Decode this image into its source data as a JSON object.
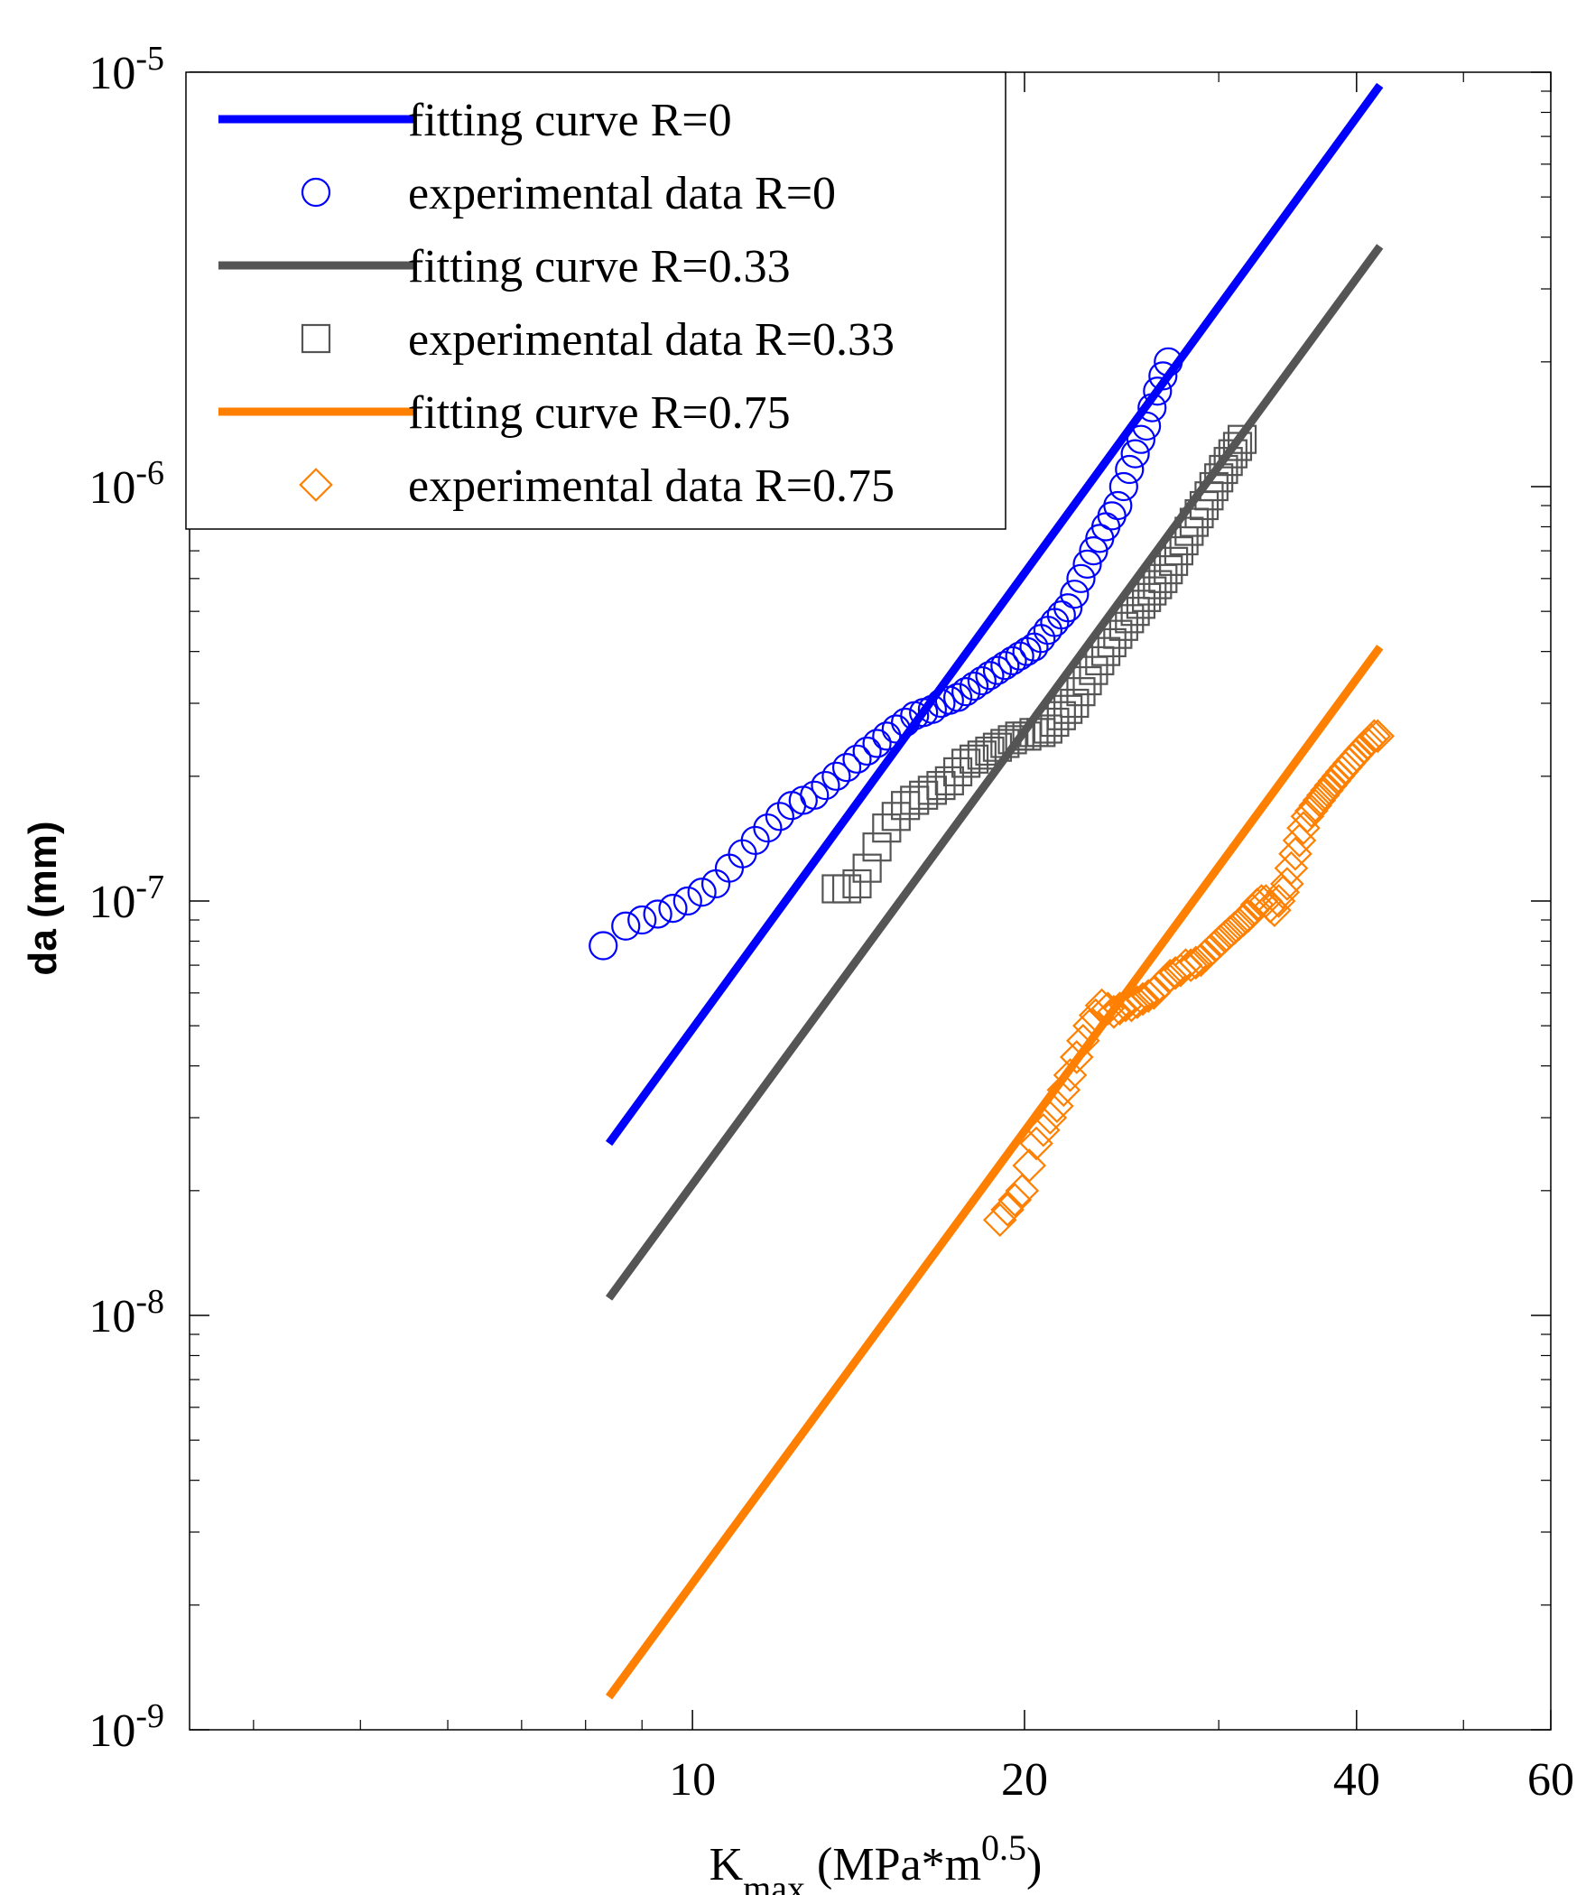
{
  "chart_data": {
    "type": "scatter",
    "xlabel": {
      "main": "K",
      "sub": "max",
      "rest": " (MPa*m",
      "sup": "0.5",
      "end": ")"
    },
    "ylabel": "da (mm)",
    "xscale": "log",
    "yscale": "log",
    "xlim": [
      3.5,
      60
    ],
    "ylim": [
      1e-09,
      1e-05
    ],
    "xticks": [
      10,
      20,
      40,
      60
    ],
    "yticks": [
      {
        "base": "10",
        "exp": "-9",
        "value": 1e-09
      },
      {
        "base": "10",
        "exp": "-8",
        "value": 1e-08
      },
      {
        "base": "10",
        "exp": "-7",
        "value": 1e-07
      },
      {
        "base": "10",
        "exp": "-6",
        "value": 1e-06
      },
      {
        "base": "10",
        "exp": "-5",
        "value": 1e-05
      }
    ],
    "legend_position": "top-left",
    "colors": {
      "r0": "#0000ff",
      "r033": "#555555",
      "r075": "#ff7f00"
    },
    "series": [
      {
        "name": "fitting curve R=0",
        "kind": "line",
        "color": "#0000ff",
        "x": [
          8.4,
          42
        ],
        "y": [
          2.6e-08,
          9.3e-06
        ]
      },
      {
        "name": "experimental data R=0",
        "kind": "marker",
        "marker": "circle",
        "color": "#0000ff",
        "x": [
          8.3,
          8.7,
          9.0,
          9.3,
          9.6,
          9.9,
          10.2,
          10.5,
          10.8,
          11.1,
          11.4,
          11.7,
          12.0,
          12.3,
          12.6,
          12.9,
          13.2,
          13.5,
          13.8,
          14.1,
          14.4,
          14.7,
          15.0,
          15.3,
          15.6,
          15.9,
          16.2,
          16.5,
          16.8,
          17.1,
          17.4,
          17.7,
          18.0,
          18.3,
          18.6,
          18.9,
          19.2,
          19.5,
          19.8,
          20.1,
          20.4,
          20.7,
          21.0,
          21.3,
          21.6,
          21.9,
          22.2,
          22.5,
          22.8,
          23.1,
          23.4,
          23.7,
          24.0,
          24.3,
          24.6,
          24.9,
          25.2,
          25.5,
          25.8,
          26.1,
          26.4,
          26.7,
          27.0
        ],
        "y": [
          7.8e-08,
          8.7e-08,
          9e-08,
          9.3e-08,
          9.6e-08,
          1e-07,
          1.05e-07,
          1.1e-07,
          1.2e-07,
          1.3e-07,
          1.4e-07,
          1.5e-07,
          1.6e-07,
          1.7e-07,
          1.75e-07,
          1.8e-07,
          1.9e-07,
          2e-07,
          2.1e-07,
          2.2e-07,
          2.3e-07,
          2.4e-07,
          2.5e-07,
          2.6e-07,
          2.7e-07,
          2.8e-07,
          2.85e-07,
          2.9e-07,
          3e-07,
          3.05e-07,
          3.1e-07,
          3.2e-07,
          3.3e-07,
          3.4e-07,
          3.5e-07,
          3.6e-07,
          3.7e-07,
          3.8e-07,
          3.9e-07,
          4e-07,
          4.1e-07,
          4.3e-07,
          4.5e-07,
          4.7e-07,
          4.9e-07,
          5.1e-07,
          5.5e-07,
          6e-07,
          6.5e-07,
          7e-07,
          7.5e-07,
          8e-07,
          8.5e-07,
          9e-07,
          1e-06,
          1.1e-06,
          1.2e-06,
          1.3e-06,
          1.4e-06,
          1.55e-06,
          1.7e-06,
          1.85e-06,
          2e-06
        ]
      },
      {
        "name": "fitting curve R=0.33",
        "kind": "line",
        "color": "#555555",
        "x": [
          8.4,
          42
        ],
        "y": [
          1.1e-08,
          3.8e-06
        ]
      },
      {
        "name": "experimental data R=0.33",
        "kind": "marker",
        "marker": "square",
        "color": "#555555",
        "x": [
          13.5,
          13.8,
          14.1,
          14.4,
          14.7,
          15.0,
          15.3,
          15.6,
          15.9,
          16.2,
          16.5,
          16.8,
          17.1,
          17.4,
          17.7,
          18.0,
          18.3,
          18.6,
          18.9,
          19.2,
          19.5,
          19.8,
          20.1,
          20.4,
          20.7,
          21.0,
          21.3,
          21.6,
          21.9,
          22.2,
          22.5,
          22.8,
          23.1,
          23.4,
          23.7,
          24.0,
          24.3,
          24.6,
          24.9,
          25.2,
          25.5,
          25.8,
          26.1,
          26.4,
          26.7,
          27.0,
          27.3,
          27.6,
          27.9,
          28.2,
          28.5,
          28.8,
          29.1,
          29.4,
          29.7,
          30.0,
          30.3,
          30.6,
          30.9,
          31.2,
          31.5
        ],
        "y": [
          1.07e-07,
          1.07e-07,
          1.1e-07,
          1.2e-07,
          1.35e-07,
          1.5e-07,
          1.6e-07,
          1.7e-07,
          1.75e-07,
          1.8e-07,
          1.85e-07,
          1.9e-07,
          1.95e-07,
          2.05e-07,
          2.15e-07,
          2.2e-07,
          2.25e-07,
          2.3e-07,
          2.35e-07,
          2.4e-07,
          2.45e-07,
          2.5e-07,
          2.5e-07,
          2.55e-07,
          2.55e-07,
          2.6e-07,
          2.7e-07,
          2.8e-07,
          2.9e-07,
          3e-07,
          3.2e-07,
          3.4e-07,
          3.6e-07,
          3.8e-07,
          4e-07,
          4.2e-07,
          4.4e-07,
          4.6e-07,
          4.8e-07,
          5e-07,
          5.2e-07,
          5.4e-07,
          5.6e-07,
          5.8e-07,
          6e-07,
          6.3e-07,
          6.6e-07,
          7e-07,
          7.4e-07,
          7.8e-07,
          8.2e-07,
          8.6e-07,
          9e-07,
          9.5e-07,
          1e-06,
          1.05e-06,
          1.1e-06,
          1.15e-06,
          1.2e-06,
          1.25e-06,
          1.3e-06
        ]
      },
      {
        "name": "fitting curve R=0.75",
        "kind": "line",
        "color": "#ff7f00",
        "x": [
          8.4,
          42
        ],
        "y": [
          1.2e-09,
          4.1e-07
        ]
      },
      {
        "name": "experimental data R=0.75",
        "kind": "marker",
        "marker": "diamond",
        "color": "#ff7f00",
        "x": [
          19.0,
          19.3,
          19.6,
          19.9,
          20.2,
          20.5,
          20.8,
          21.1,
          21.4,
          21.7,
          22.0,
          22.3,
          22.6,
          22.9,
          23.2,
          23.5,
          23.8,
          24.1,
          24.4,
          24.7,
          25.0,
          25.3,
          25.6,
          25.9,
          26.2,
          26.5,
          26.8,
          27.1,
          27.4,
          27.7,
          28.0,
          28.3,
          28.6,
          28.9,
          29.2,
          29.5,
          29.8,
          30.1,
          30.4,
          30.7,
          31.0,
          31.3,
          31.6,
          31.9,
          32.2,
          32.5,
          32.8,
          33.1,
          33.4,
          33.7,
          34.0,
          34.3,
          34.6,
          34.9,
          35.2,
          35.5,
          35.8,
          36.1,
          36.4,
          36.7,
          37.0,
          37.3,
          37.6,
          37.9,
          38.2,
          38.5,
          38.8,
          39.1,
          39.4,
          39.7,
          40.0,
          40.3,
          40.6,
          40.9,
          41.2,
          41.5,
          41.8
        ],
        "y": [
          1.7e-08,
          1.8e-08,
          1.9e-08,
          2e-08,
          2.3e-08,
          2.6e-08,
          2.8e-08,
          3e-08,
          3.2e-08,
          3.5e-08,
          3.8e-08,
          4.2e-08,
          4.6e-08,
          5e-08,
          5.3e-08,
          5.6e-08,
          5.5e-08,
          5.4e-08,
          5.5e-08,
          5.6e-08,
          5.6e-08,
          5.7e-08,
          5.8e-08,
          5.9e-08,
          6e-08,
          6.2e-08,
          6.4e-08,
          6.6e-08,
          6.7e-08,
          6.8e-08,
          7e-08,
          7e-08,
          7.1e-08,
          7.2e-08,
          7.4e-08,
          7.6e-08,
          7.8e-08,
          8e-08,
          8.2e-08,
          8.4e-08,
          8.6e-08,
          8.8e-08,
          9e-08,
          9.2e-08,
          9.5e-08,
          9.8e-08,
          1e-07,
          1e-07,
          9.7e-08,
          9.5e-08,
          1e-07,
          1.05e-07,
          1.1e-07,
          1.2e-07,
          1.3e-07,
          1.4e-07,
          1.5e-07,
          1.6e-07,
          1.65e-07,
          1.7e-07,
          1.75e-07,
          1.8e-07,
          1.85e-07,
          1.9e-07,
          1.95e-07,
          2e-07,
          2.05e-07,
          2.1e-07,
          2.15e-07,
          2.2e-07,
          2.25e-07,
          2.3e-07,
          2.35e-07,
          2.4e-07,
          2.45e-07,
          2.5e-07,
          2.5e-07
        ]
      }
    ]
  }
}
